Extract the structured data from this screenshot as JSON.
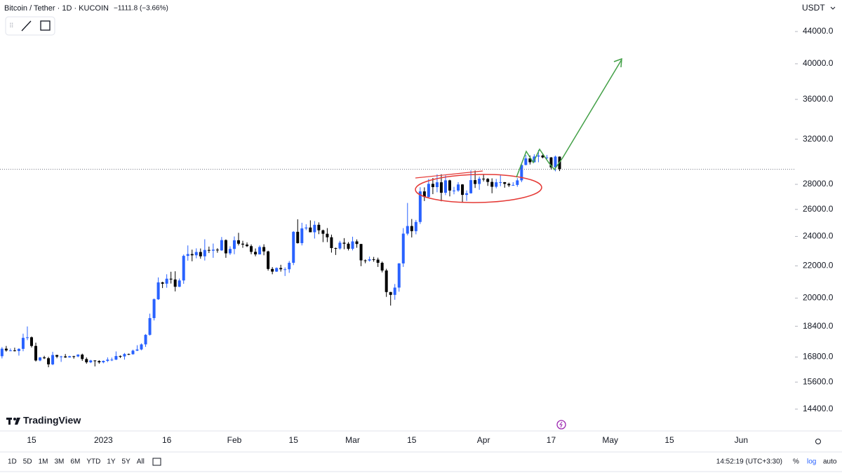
{
  "chart_data": {
    "type": "candlestick",
    "title": "Bitcoin / Tether · 1D · KUCOIN",
    "change": "−1111.8 (−3.66%)",
    "currency": "USDT",
    "up_color": "#2962ff",
    "down_color": "#000000",
    "log_scale": true,
    "grid": false,
    "dates": [
      "Dec 8",
      "Dec 9",
      "Dec 10",
      "Dec 11",
      "Dec 12",
      "Dec 13",
      "Dec 14",
      "Dec 15",
      "Dec 16",
      "Dec 17",
      "Dec 18",
      "Dec 19",
      "Dec 20",
      "Dec 21",
      "Dec 22",
      "Dec 23",
      "Dec 24",
      "Dec 25",
      "Dec 26",
      "Dec 27",
      "Dec 28",
      "Dec 29",
      "Dec 30",
      "Dec 31",
      "Jan 1",
      "Jan 2",
      "Jan 3",
      "Jan 4",
      "Jan 5",
      "Jan 6",
      "Jan 7",
      "Jan 8",
      "Jan 9",
      "Jan 10",
      "Jan 11",
      "Jan 12",
      "Jan 13",
      "Jan 14",
      "Jan 15",
      "Jan 16",
      "Jan 17",
      "Jan 18",
      "Jan 19",
      "Jan 20",
      "Jan 21",
      "Jan 22",
      "Jan 23",
      "Jan 24",
      "Jan 25",
      "Jan 26",
      "Jan 27",
      "Jan 28",
      "Jan 29",
      "Jan 30",
      "Jan 31",
      "Feb 1",
      "Feb 2",
      "Feb 3",
      "Feb 4",
      "Feb 5",
      "Feb 6",
      "Feb 7",
      "Feb 8",
      "Feb 9",
      "Feb 10",
      "Feb 11",
      "Feb 12",
      "Feb 13",
      "Feb 14",
      "Feb 15",
      "Feb 16",
      "Feb 17",
      "Feb 18",
      "Feb 19",
      "Feb 20",
      "Feb 21",
      "Feb 22",
      "Feb 23",
      "Feb 24",
      "Feb 25",
      "Feb 26",
      "Feb 27",
      "Feb 28",
      "Mar 1",
      "Mar 2",
      "Mar 3",
      "Mar 4",
      "Mar 5",
      "Mar 6",
      "Mar 7",
      "Mar 8",
      "Mar 9",
      "Mar 10",
      "Mar 11",
      "Mar 12",
      "Mar 13",
      "Mar 14",
      "Mar 15",
      "Mar 16",
      "Mar 17",
      "Mar 18",
      "Mar 19",
      "Mar 20",
      "Mar 21",
      "Mar 22",
      "Mar 23",
      "Mar 24",
      "Mar 25",
      "Mar 26",
      "Mar 27",
      "Mar 28",
      "Mar 29",
      "Mar 30",
      "Mar 31",
      "Apr 1",
      "Apr 2",
      "Apr 3",
      "Apr 4",
      "Apr 5",
      "Apr 6",
      "Apr 7",
      "Apr 8",
      "Apr 9",
      "Apr 10",
      "Apr 11",
      "Apr 12",
      "Apr 13",
      "Apr 14",
      "Apr 15",
      "Apr 16",
      "Apr 17",
      "Apr 18",
      "Apr 19"
    ],
    "open": [
      16840,
      17220,
      17130,
      17130,
      17100,
      17210,
      17780,
      17810,
      17360,
      16630,
      16780,
      16740,
      16440,
      16900,
      16820,
      16830,
      16780,
      16840,
      16830,
      16920,
      16700,
      16540,
      16630,
      16600,
      16540,
      16610,
      16670,
      16670,
      16850,
      16830,
      16950,
      16940,
      17120,
      17180,
      17440,
      17940,
      18850,
      19930,
      20950,
      20870,
      21180,
      21130,
      20680,
      21070,
      22660,
      22780,
      22700,
      22920,
      22630,
      23060,
      23010,
      23080,
      23030,
      23740,
      22830,
      23130,
      23730,
      23490,
      23430,
      23320,
      22930,
      22760,
      23260,
      22960,
      21800,
      21630,
      21860,
      21780,
      21780,
      22200,
      24330,
      23530,
      24580,
      24640,
      24300,
      24840,
      24440,
      24190,
      23940,
      23190,
      23160,
      23560,
      23490,
      23140,
      23650,
      23470,
      22360,
      22350,
      22430,
      22410,
      22200,
      21700,
      20360,
      20190,
      20630,
      22160,
      24200,
      24750,
      24380,
      25050,
      27420,
      26970,
      28040,
      27770,
      28170,
      27310,
      28330,
      27490,
      27490,
      27990,
      27140,
      27270,
      28350,
      28030,
      28470,
      28450,
      28200,
      27800,
      28170,
      28180,
      28040,
      27920,
      27950,
      28330,
      29650,
      30230,
      29890,
      30400,
      30490,
      30320,
      30320,
      29440,
      30390
    ],
    "high": [
      17300,
      17360,
      17230,
      17270,
      17240,
      18000,
      18390,
      17850,
      17530,
      16800,
      16860,
      16810,
      17060,
      16910,
      16860,
      16950,
      16860,
      16860,
      16940,
      16970,
      16780,
      16660,
      16640,
      16640,
      16630,
      16780,
      16770,
      17080,
      16880,
      17000,
      16970,
      17170,
      17400,
      17490,
      17980,
      19100,
      19980,
      21260,
      20990,
      21460,
      21620,
      21650,
      21190,
      22750,
      23370,
      23080,
      23170,
      23160,
      23800,
      23290,
      23500,
      23180,
      23960,
      23790,
      23310,
      24000,
      24260,
      23690,
      23580,
      23440,
      23160,
      23370,
      23450,
      23010,
      21920,
      21900,
      22070,
      21900,
      22320,
      24380,
      25250,
      24990,
      24880,
      25170,
      25120,
      25020,
      24490,
      24600,
      24130,
      23220,
      23690,
      23880,
      23600,
      23980,
      23790,
      23480,
      22420,
      22610,
      22590,
      22540,
      22280,
      21810,
      20370,
      20850,
      22180,
      24600,
      26500,
      25270,
      25200,
      27760,
      27750,
      28450,
      28530,
      28840,
      28850,
      28750,
      28380,
      27790,
      28180,
      28020,
      27500,
      29180,
      29170,
      28650,
      28820,
      28530,
      28500,
      28450,
      28760,
      28190,
      28140,
      28180,
      28520,
      29780,
      30550,
      30490,
      30600,
      31000,
      30600,
      30540,
      30350,
      30480,
      30410
    ],
    "low": [
      16730,
      17070,
      17090,
      17080,
      16870,
      17090,
      17660,
      17280,
      16580,
      16590,
      16700,
      16300,
      16400,
      16740,
      16560,
      16760,
      16770,
      16720,
      16790,
      16610,
      16470,
      16500,
      16340,
      16470,
      16490,
      16550,
      16600,
      16650,
      16750,
      16670,
      16900,
      16920,
      17100,
      17140,
      17310,
      17900,
      18720,
      19890,
      20600,
      20620,
      20880,
      20400,
      20660,
      20860,
      22340,
      22300,
      22500,
      22470,
      22350,
      22850,
      22530,
      22870,
      23000,
      22530,
      22720,
      22770,
      23370,
      23210,
      23260,
      22770,
      22630,
      22750,
      22700,
      21690,
      21460,
      21610,
      21630,
      21350,
      21550,
      22050,
      23500,
      23370,
      24450,
      24300,
      23850,
      24160,
      23600,
      23600,
      22880,
      22720,
      23080,
      23110,
      23030,
      23030,
      23210,
      21980,
      22170,
      22280,
      22270,
      21930,
      21580,
      20070,
      19560,
      19900,
      20380,
      21930,
      24080,
      23930,
      24150,
      24900,
      26650,
      26880,
      27200,
      27350,
      26630,
      27120,
      27020,
      27190,
      27380,
      26520,
      26660,
      27240,
      27700,
      27550,
      28240,
      27870,
      27270,
      27670,
      27840,
      27720,
      27780,
      27880,
      27800,
      28180,
      29620,
      29690,
      29870,
      29890,
      30240,
      30170,
      29270,
      29100,
      29120
    ],
    "close": [
      17220,
      17130,
      17130,
      17100,
      17210,
      17780,
      17810,
      17360,
      16630,
      16780,
      16740,
      16440,
      16900,
      16820,
      16830,
      16780,
      16840,
      16830,
      16920,
      16700,
      16540,
      16630,
      16600,
      16540,
      16610,
      16670,
      16670,
      16850,
      16830,
      16950,
      16940,
      17120,
      17180,
      17440,
      17940,
      18850,
      19930,
      20950,
      20870,
      21180,
      21130,
      20680,
      21070,
      22660,
      22780,
      22700,
      22920,
      22630,
      23060,
      23010,
      23080,
      23030,
      23740,
      22830,
      23130,
      23730,
      23490,
      23430,
      23320,
      22930,
      22760,
      23260,
      22960,
      21800,
      21630,
      21860,
      21780,
      21780,
      22200,
      24330,
      23530,
      24580,
      24640,
      24300,
      24840,
      24440,
      24190,
      23940,
      23190,
      23160,
      23560,
      23490,
      23140,
      23650,
      23470,
      22360,
      22350,
      22430,
      22410,
      22200,
      21700,
      20360,
      20190,
      20630,
      22160,
      24200,
      24750,
      24380,
      25050,
      27420,
      26970,
      28040,
      27770,
      28170,
      27310,
      28330,
      27490,
      27490,
      27990,
      27140,
      27270,
      28350,
      28030,
      28470,
      28450,
      28200,
      27800,
      28170,
      28180,
      28040,
      27920,
      27950,
      28330,
      29650,
      30230,
      29890,
      30400,
      30490,
      30320,
      30320,
      29440,
      30390,
      29280
    ],
    "ylim": [
      13500,
      48300
    ],
    "yticks": [
      {
        "value": 14400,
        "label": "14400.0"
      },
      {
        "value": 15600,
        "label": "15600.0"
      },
      {
        "value": 16800,
        "label": "16800.0"
      },
      {
        "value": 18400,
        "label": "18400.0"
      },
      {
        "value": 20000,
        "label": "20000.0"
      },
      {
        "value": 22000,
        "label": "22000.0"
      },
      {
        "value": 24000,
        "label": "24000.0"
      },
      {
        "value": 26000,
        "label": "26000.0"
      },
      {
        "value": 28000,
        "label": "28000.0"
      },
      {
        "value": 32000,
        "label": "32000.0"
      },
      {
        "value": 36000,
        "label": "36000.0"
      },
      {
        "value": 40000,
        "label": "40000.0"
      },
      {
        "value": 44000,
        "label": "44000.0"
      }
    ],
    "xticks": [
      {
        "value": "Dec 15",
        "label": "15"
      },
      {
        "value": "Jan 1",
        "label": "2023"
      },
      {
        "value": "Jan 16",
        "label": "16"
      },
      {
        "value": "Feb 1",
        "label": "Feb"
      },
      {
        "value": "Feb 15",
        "label": "15"
      },
      {
        "value": "Mar 1",
        "label": "Mar"
      },
      {
        "value": "Mar 15",
        "label": "15"
      },
      {
        "value": "Apr 1",
        "label": "Apr"
      },
      {
        "value": "Apr 17",
        "label": "17"
      },
      {
        "value": "May 1",
        "label": "May"
      },
      {
        "value": "May 15",
        "label": "15"
      },
      {
        "value": "Jun 1",
        "label": "Jun"
      }
    ]
  },
  "branding": "TradingView",
  "toolbar": {
    "ranges": [
      "1D",
      "5D",
      "1M",
      "3M",
      "6M",
      "YTD",
      "1Y",
      "5Y",
      "All"
    ],
    "time": "14:52:19 (UTC+3:30)",
    "options": [
      "%",
      "log",
      "auto"
    ]
  }
}
